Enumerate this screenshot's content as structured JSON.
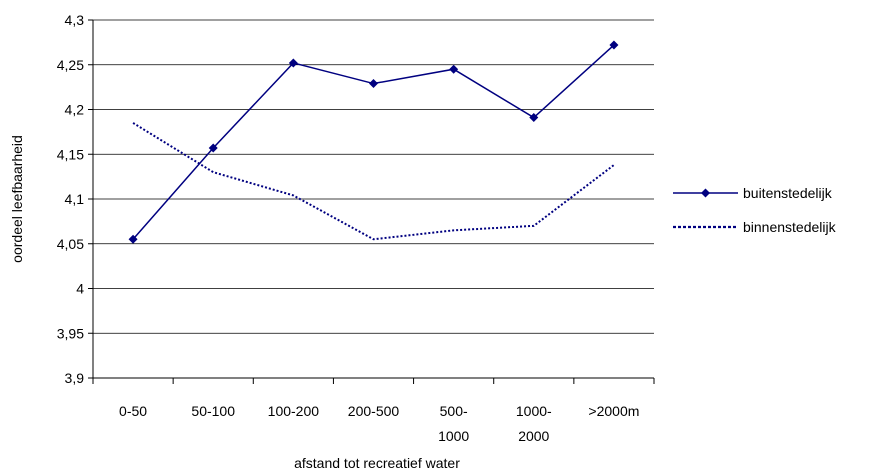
{
  "chart_data": {
    "type": "line",
    "categories": [
      [
        "0-50"
      ],
      [
        "50-100"
      ],
      [
        "100-200"
      ],
      [
        "200-500"
      ],
      [
        "500-",
        "1000"
      ],
      [
        "1000-",
        "2000"
      ],
      [
        ">2000m"
      ]
    ],
    "series": [
      {
        "name": "buitenstedelijk",
        "values": [
          4.055,
          4.157,
          4.252,
          4.229,
          4.245,
          4.191,
          4.272
        ],
        "color": "#000080",
        "line_style": "solid",
        "marker": "diamond"
      },
      {
        "name": "binnenstedelijk",
        "values": [
          4.185,
          4.13,
          4.104,
          4.055,
          4.065,
          4.07,
          4.138
        ],
        "color": "#000080",
        "line_style": "dotted",
        "marker": "none"
      }
    ],
    "xlabel": "afstand tot recreatief water",
    "ylabel": "oordeel leefbaarheid",
    "ylim": [
      3.9,
      4.3
    ],
    "yticks": [
      "3,9",
      "3,95",
      "4",
      "4,05",
      "4,1",
      "4,15",
      "4,2",
      "4,25",
      "4,3"
    ],
    "grid": true,
    "legend_position": "right"
  }
}
